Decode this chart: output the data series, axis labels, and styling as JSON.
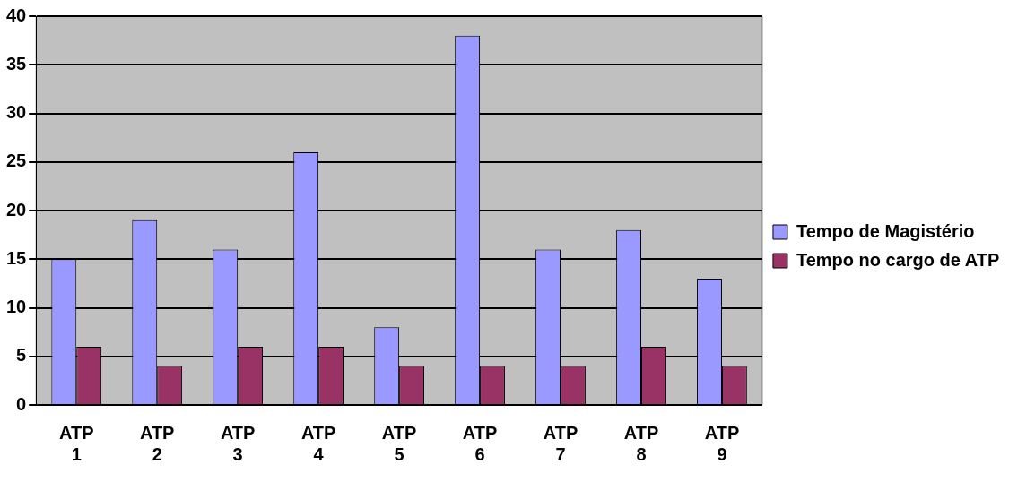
{
  "chart_data": {
    "type": "bar",
    "categories": [
      "ATP 1",
      "ATP 2",
      "ATP 3",
      "ATP 4",
      "ATP 5",
      "ATP 6",
      "ATP 7",
      "ATP 8",
      "ATP 9"
    ],
    "series": [
      {
        "name": "Tempo de Magistério",
        "color": "#9999ff",
        "values": [
          15,
          19,
          16,
          26,
          8,
          38,
          16,
          18,
          13
        ]
      },
      {
        "name": "Tempo no cargo de ATP",
        "color": "#993366",
        "values": [
          6,
          4,
          6,
          6,
          4,
          4,
          4,
          6,
          4
        ]
      }
    ],
    "ylim": [
      0,
      40
    ],
    "yticks": [
      0,
      5,
      10,
      15,
      20,
      25,
      30,
      35,
      40
    ],
    "grid": "y",
    "legend": "right"
  }
}
